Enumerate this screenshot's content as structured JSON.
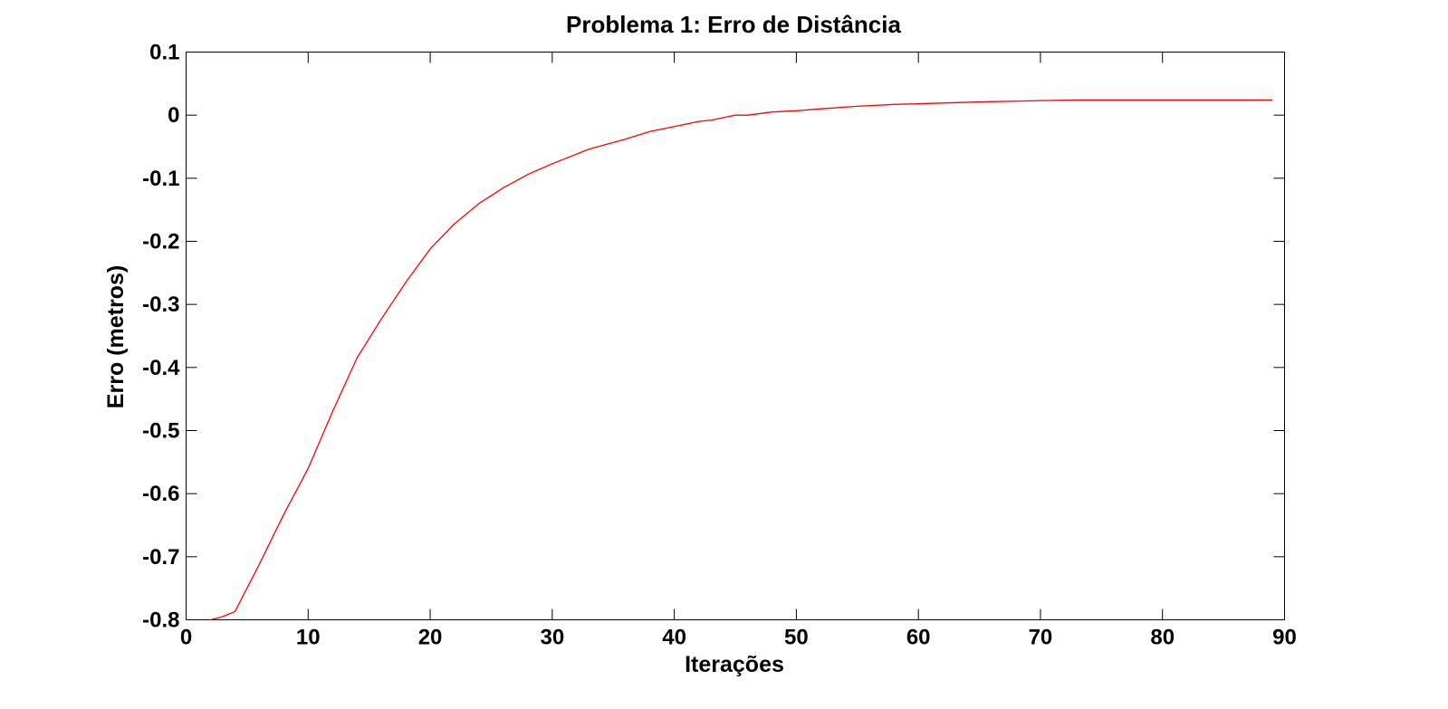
{
  "chart_data": {
    "type": "line",
    "title": "Problema 1: Erro de Distância",
    "xlabel": "Iterações",
    "ylabel": "Erro (metros)",
    "xlim": [
      0,
      90
    ],
    "ylim": [
      -0.8,
      0.1
    ],
    "xticks": [
      0,
      10,
      20,
      30,
      40,
      50,
      60,
      70,
      80,
      90
    ],
    "xtick_labels": [
      "0",
      "10",
      "20",
      "30",
      "40",
      "50",
      "60",
      "70",
      "80",
      "90"
    ],
    "yticks": [
      0.1,
      0,
      -0.1,
      -0.2,
      -0.3,
      -0.4,
      -0.5,
      -0.6,
      -0.7,
      -0.8
    ],
    "ytick_labels": [
      "0.1",
      "0",
      "-0.1",
      "-0.2",
      "-0.3",
      "-0.4",
      "-0.5",
      "-0.6",
      "-0.7",
      "-0.8"
    ],
    "grid": false,
    "legend": "none",
    "series": [
      {
        "color": "#ff0000",
        "x": [
          2,
          3,
          4,
          6,
          8,
          10,
          12,
          14,
          16,
          18,
          20,
          22,
          24,
          26,
          28,
          30,
          33,
          36,
          38,
          40,
          42,
          43,
          45,
          46,
          48,
          50,
          52,
          55,
          58,
          60,
          65,
          70,
          73,
          80,
          85,
          89
        ],
        "y": [
          -0.8,
          -0.795,
          -0.787,
          -0.712,
          -0.633,
          -0.56,
          -0.47,
          -0.385,
          -0.323,
          -0.265,
          -0.212,
          -0.172,
          -0.14,
          -0.115,
          -0.094,
          -0.077,
          -0.054,
          -0.038,
          -0.026,
          -0.018,
          -0.01,
          -0.008,
          0.0,
          0.0,
          0.005,
          0.007,
          0.01,
          0.014,
          0.017,
          0.018,
          0.021,
          0.023,
          0.024,
          0.024,
          0.024,
          0.024
        ]
      }
    ]
  }
}
